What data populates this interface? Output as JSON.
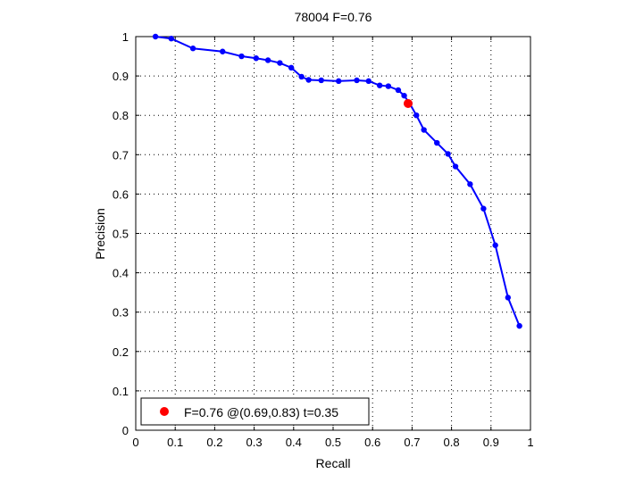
{
  "chart_data": {
    "type": "line",
    "title": "78004 F=0.76",
    "xlabel": "Recall",
    "ylabel": "Precision",
    "xlim": [
      0,
      1
    ],
    "ylim": [
      0,
      1
    ],
    "grid": true,
    "x_ticks": [
      "0",
      "0.1",
      "0.2",
      "0.3",
      "0.4",
      "0.5",
      "0.6",
      "0.7",
      "0.8",
      "0.9",
      "1"
    ],
    "y_ticks": [
      "0",
      "0.1",
      "0.2",
      "0.3",
      "0.4",
      "0.5",
      "0.6",
      "0.7",
      "0.8",
      "0.9",
      "1"
    ],
    "series": [
      {
        "color": "#0000ff",
        "marker": "dot",
        "points": [
          [
            0.05,
            1.0
          ],
          [
            0.09,
            0.995
          ],
          [
            0.145,
            0.97
          ],
          [
            0.22,
            0.962
          ],
          [
            0.268,
            0.95
          ],
          [
            0.305,
            0.945
          ],
          [
            0.335,
            0.94
          ],
          [
            0.365,
            0.933
          ],
          [
            0.394,
            0.921
          ],
          [
            0.42,
            0.898
          ],
          [
            0.438,
            0.89
          ],
          [
            0.47,
            0.889
          ],
          [
            0.514,
            0.887
          ],
          [
            0.56,
            0.889
          ],
          [
            0.59,
            0.887
          ],
          [
            0.618,
            0.876
          ],
          [
            0.64,
            0.874
          ],
          [
            0.665,
            0.864
          ],
          [
            0.68,
            0.85
          ],
          [
            0.694,
            0.83
          ],
          [
            0.711,
            0.8
          ],
          [
            0.73,
            0.763
          ],
          [
            0.763,
            0.73
          ],
          [
            0.791,
            0.702
          ],
          [
            0.81,
            0.67
          ],
          [
            0.847,
            0.625
          ],
          [
            0.881,
            0.563
          ],
          [
            0.911,
            0.47
          ],
          [
            0.943,
            0.337
          ],
          [
            0.972,
            0.265
          ]
        ]
      }
    ],
    "highlight_point": {
      "x": 0.69,
      "y": 0.83,
      "color": "#ff0000"
    },
    "legend": {
      "position": "bottom-left",
      "text": "F=0.76 @(0.69,0.83) t=0.35",
      "marker_color": "#ff0000"
    }
  }
}
